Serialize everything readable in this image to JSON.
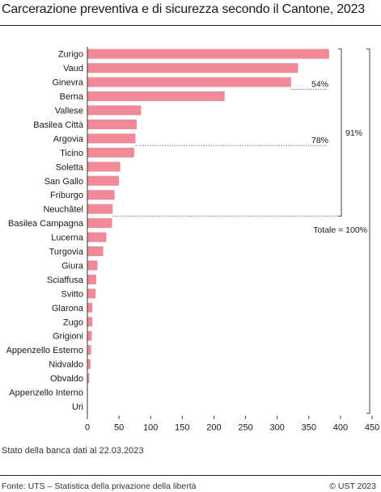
{
  "chart_data": {
    "type": "bar",
    "orientation": "horizontal",
    "title": "Carcerazione preventiva e di sicurezza secondo il Cantone, 2023",
    "categories": [
      "Zurigo",
      "Vaud",
      "Ginevra",
      "Berna",
      "Vallese",
      "Basilea Città",
      "Argovia",
      "Ticino",
      "Soletta",
      "San Gallo",
      "Friburgo",
      "Neuchâtel",
      "Basilea Campagna",
      "Lucerna",
      "Turgovia",
      "Giura",
      "Sciaffusa",
      "Svitto",
      "Glarona",
      "Zugo",
      "Grigioni",
      "Appenzello Esterno",
      "Nidvaldo",
      "Obvaldo",
      "Appenzello Interno",
      "Uri"
    ],
    "values": [
      382,
      333,
      322,
      217,
      85,
      78,
      76,
      74,
      52,
      50,
      43,
      40,
      39,
      30,
      25,
      16,
      14,
      13,
      8,
      8,
      7,
      6,
      5,
      3,
      0,
      0
    ],
    "xlim": [
      0,
      450
    ],
    "xticks": [
      0,
      50,
      100,
      150,
      200,
      250,
      300,
      350,
      400,
      450
    ],
    "bar_color": "#f08a98",
    "grid": false,
    "annotations": [
      {
        "text": "54%",
        "after_index": 2
      },
      {
        "text": "78%",
        "after_index": 6
      },
      {
        "text": "91%",
        "after_index": 11
      },
      {
        "text": "Totale  = 100%",
        "after_index": 25
      }
    ]
  },
  "footer": {
    "note": "Stato della banca dati al 22.03.2023",
    "source": "Fonte: UTS – Statistica della privazione della libertà",
    "copyright": "© UST 2023"
  }
}
